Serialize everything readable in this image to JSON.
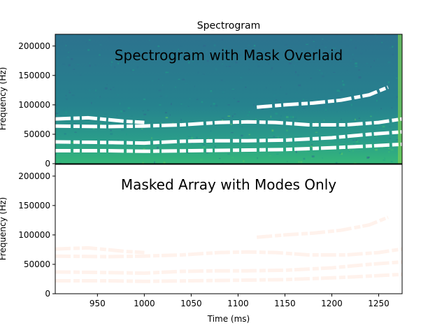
{
  "chart_data": [
    {
      "type": "heatmap",
      "title": "Spectrogram",
      "annotation": "Spectrogram with Mask Overlaid",
      "xlabel": "",
      "ylabel": "Frequency (Hz)",
      "xlim": [
        905,
        1275
      ],
      "ylim": [
        0,
        220000
      ],
      "yticks": [
        0,
        50000,
        100000,
        150000,
        200000
      ],
      "xticks": [],
      "colormap": "viridis",
      "mask_color": "#ffffff",
      "modes": [
        {
          "x": [
            905,
            960,
            1000,
            1040,
            1080,
            1110,
            1140,
            1175,
            1215,
            1250,
            1275
          ],
          "y": [
            64000,
            63000,
            64000,
            66000,
            70000,
            71000,
            70000,
            66000,
            66000,
            70000,
            76000
          ]
        },
        {
          "x": [
            905,
            960,
            1000,
            1040,
            1080,
            1110,
            1150,
            1200,
            1240,
            1275
          ],
          "y": [
            37000,
            36000,
            35000,
            38000,
            39000,
            39000,
            40000,
            44000,
            50000,
            54000
          ]
        },
        {
          "x": [
            905,
            960,
            1000,
            1050,
            1100,
            1150,
            1200,
            1240,
            1275
          ],
          "y": [
            22000,
            22000,
            21000,
            22000,
            23000,
            24000,
            27000,
            30000,
            33000
          ]
        },
        {
          "x": [
            1120,
            1150,
            1180,
            1210,
            1240,
            1260
          ],
          "y": [
            96000,
            100000,
            103000,
            108000,
            117000,
            130000
          ]
        },
        {
          "x": [
            905,
            940,
            980,
            1000
          ],
          "y": [
            76000,
            78000,
            72000,
            70000
          ]
        }
      ]
    },
    {
      "type": "heatmap",
      "annotation": "Masked Array with Modes Only",
      "xlabel": "Time (ms)",
      "ylabel": "Frequency (Hz)",
      "xlim": [
        905,
        1275
      ],
      "ylim": [
        0,
        220000
      ],
      "yticks": [
        0,
        50000,
        100000,
        150000,
        200000
      ],
      "xticks": [
        950,
        1000,
        1050,
        1100,
        1150,
        1200,
        1250
      ],
      "colormap": "Reds",
      "background_color": "#ffffff",
      "mode_color": "#fff2ec"
    }
  ]
}
